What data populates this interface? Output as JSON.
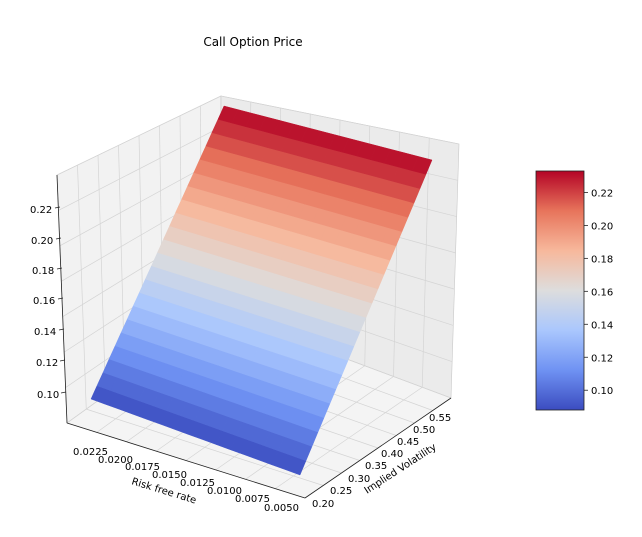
{
  "chart_data": {
    "type": "surface3d",
    "title": "Call Option Price",
    "xlabel": "Risk free rate",
    "ylabel": "Implied Volatility",
    "zlabel": "",
    "colormap": "coolwarm",
    "colormap_stops": [
      "#3b4cc0",
      "#6f92f3",
      "#aac7fd",
      "#dddddd",
      "#f7b89c",
      "#e7745b",
      "#b40426"
    ],
    "x_ticks": [
      "0.0225",
      "0.0200",
      "0.0175",
      "0.0150",
      "0.0125",
      "0.0100",
      "0.0075",
      "0.0050"
    ],
    "x_tick_values": [
      0.0225,
      0.02,
      0.0175,
      0.015,
      0.0125,
      0.01,
      0.0075,
      0.005
    ],
    "y_ticks": [
      "0.20",
      "0.25",
      "0.30",
      "0.35",
      "0.40",
      "0.45",
      "0.50",
      "0.55"
    ],
    "y_tick_values": [
      0.2,
      0.25,
      0.3,
      0.35,
      0.4,
      0.45,
      0.5,
      0.55
    ],
    "z_ticks": [
      "0.10",
      "0.12",
      "0.14",
      "0.16",
      "0.18",
      "0.20",
      "0.22"
    ],
    "z_tick_values": [
      0.1,
      0.12,
      0.14,
      0.16,
      0.18,
      0.2,
      0.22
    ],
    "x_range": [
      0.005,
      0.025
    ],
    "y_range": [
      0.2,
      0.58
    ],
    "z_range": [
      0.088,
      0.233
    ],
    "surface": {
      "description": "price increases approximately linearly with implied volatility, nearly flat in risk free rate",
      "x": [
        0.025,
        0.005
      ],
      "y": [
        0.2,
        0.58
      ],
      "z_at_vol_min": 0.088,
      "z_at_vol_max": 0.233,
      "grid_x": 15,
      "grid_y": 22
    },
    "colorbar": {
      "ticks": [
        "0.10",
        "0.12",
        "0.14",
        "0.16",
        "0.18",
        "0.20",
        "0.22"
      ],
      "tick_values": [
        0.1,
        0.12,
        0.14,
        0.16,
        0.18,
        0.2,
        0.22
      ],
      "range": [
        0.088,
        0.233
      ]
    },
    "grid": true
  }
}
